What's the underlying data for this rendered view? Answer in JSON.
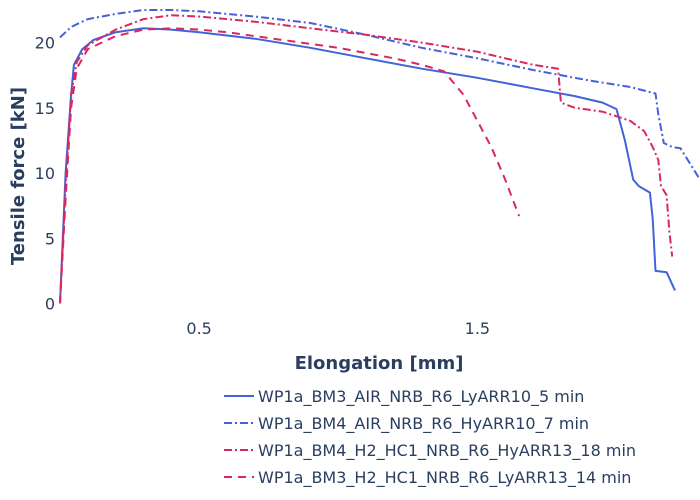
{
  "chart_data": {
    "type": "line",
    "title": "",
    "xlabel": "Elongation [mm]",
    "ylabel": "Tensile force [kN]",
    "xlim": [
      0,
      2.3
    ],
    "ylim": [
      -0.5,
      22.5
    ],
    "x_ticks": [
      0.5,
      1.5
    ],
    "x_tick_labels": [
      "0.5",
      "1.5"
    ],
    "y_ticks": [
      0,
      5,
      10,
      15,
      20
    ],
    "y_tick_labels": [
      "0",
      "5",
      "10",
      "15",
      "20"
    ],
    "grid": false,
    "legend_position": "bottom-right",
    "series": [
      {
        "name": "WP1a_BM3_AIR_NRB_R6_LyARR10_5 min",
        "color": "#4263d8",
        "dash": "solid",
        "x": [
          0.0,
          0.02,
          0.04,
          0.05,
          0.08,
          0.12,
          0.2,
          0.3,
          0.4,
          0.5,
          0.7,
          0.9,
          1.1,
          1.3,
          1.5,
          1.7,
          1.85,
          1.95,
          2.0,
          2.03,
          2.06,
          2.08,
          2.12,
          2.13,
          2.14,
          2.18,
          2.21
        ],
        "y": [
          0.0,
          10.0,
          16.0,
          18.3,
          19.5,
          20.2,
          20.8,
          21.1,
          21.0,
          20.8,
          20.3,
          19.6,
          18.8,
          18.0,
          17.3,
          16.5,
          15.9,
          15.4,
          14.9,
          12.5,
          9.5,
          9.0,
          8.5,
          6.5,
          2.5,
          2.4,
          1.0
        ]
      },
      {
        "name": "WP1a_BM4_AIR_NRB_R6_HyARR10_7 min",
        "color": "#4263d8",
        "dash": "8,3,2,3",
        "x": [
          0.0,
          0.02,
          0.04,
          0.06,
          0.1,
          0.2,
          0.3,
          0.4,
          0.5,
          0.7,
          0.9,
          1.1,
          1.3,
          1.5,
          1.7,
          1.9,
          2.05,
          2.14,
          2.15,
          2.17,
          2.2,
          2.23,
          2.3
        ],
        "y": [
          20.4,
          20.8,
          21.2,
          21.4,
          21.8,
          22.2,
          22.5,
          22.5,
          22.4,
          22.0,
          21.5,
          20.6,
          19.6,
          18.8,
          17.9,
          17.1,
          16.6,
          16.1,
          14.5,
          12.3,
          12.0,
          11.9,
          9.5
        ]
      },
      {
        "name": "WP1a_BM4_H2_HC1_NRB_R6_HyARR13_18 min",
        "color": "#d82860",
        "dash": "8,3,2,3",
        "x": [
          0.0,
          0.02,
          0.04,
          0.06,
          0.1,
          0.2,
          0.3,
          0.4,
          0.5,
          0.7,
          0.9,
          1.1,
          1.3,
          1.5,
          1.6,
          1.7,
          1.79,
          1.8,
          1.85,
          1.95,
          2.05,
          2.1,
          2.13,
          2.15,
          2.16,
          2.18,
          2.19,
          2.2
        ],
        "y": [
          0.0,
          9.0,
          16.0,
          18.5,
          19.8,
          21.0,
          21.8,
          22.1,
          22.0,
          21.6,
          21.1,
          20.6,
          20.0,
          19.3,
          18.8,
          18.3,
          18.0,
          15.4,
          15.0,
          14.7,
          14.0,
          13.2,
          12.0,
          11.0,
          9.0,
          8.3,
          5.5,
          3.6
        ]
      },
      {
        "name": "WP1a_BM3_H2_HC1_NRB_R6_LyARR13_14 min",
        "color": "#d82860",
        "dash": "8,6",
        "x": [
          0.0,
          0.02,
          0.04,
          0.06,
          0.1,
          0.2,
          0.3,
          0.4,
          0.5,
          0.6,
          0.8,
          1.0,
          1.2,
          1.3,
          1.38,
          1.45,
          1.5,
          1.55,
          1.6,
          1.65
        ],
        "y": [
          0.0,
          8.0,
          15.0,
          18.0,
          19.5,
          20.5,
          21.0,
          21.1,
          21.0,
          20.8,
          20.2,
          19.6,
          18.8,
          18.3,
          17.8,
          16.0,
          14.0,
          12.0,
          9.5,
          6.7
        ]
      }
    ]
  }
}
